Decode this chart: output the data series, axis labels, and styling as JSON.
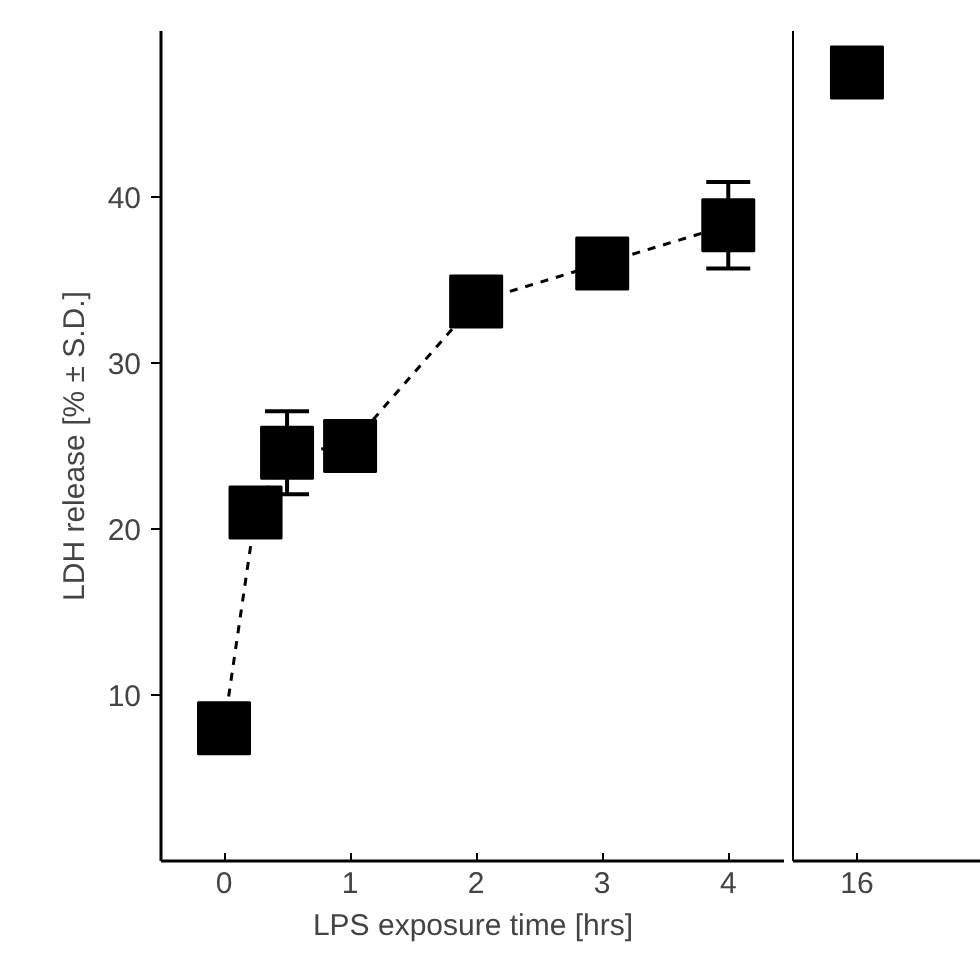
{
  "chart_data": [
    {
      "type": "line",
      "xlabel": "LPS exposure time [hrs]",
      "ylabel": "LDH release [% ± S.D.]",
      "x": [
        0,
        0.25,
        0.5,
        1,
        2,
        3,
        4
      ],
      "series": [
        {
          "color": "#000000",
          "values": [
            8,
            21,
            24.6,
            25,
            33.7,
            36,
            38.3
          ],
          "errors": [
            null,
            null,
            2.5,
            null,
            null,
            null,
            2.6
          ]
        }
      ],
      "xlim": [
        -0.5,
        4.45
      ],
      "xticks": [
        0,
        1,
        2,
        3,
        4
      ],
      "ylim": [
        0,
        50
      ],
      "yticks": [
        10,
        20,
        30,
        40
      ],
      "grid": false,
      "marker": "square",
      "line_style": "dashed"
    },
    {
      "type": "scatter",
      "categories": [
        "16"
      ],
      "series": [
        {
          "color": "#000000",
          "values": [
            47.5
          ]
        }
      ],
      "ylim": [
        0,
        50
      ],
      "yticks": [
        10,
        20,
        30,
        40
      ],
      "tick_labels": "x",
      "grid": false,
      "marker": "square"
    }
  ]
}
